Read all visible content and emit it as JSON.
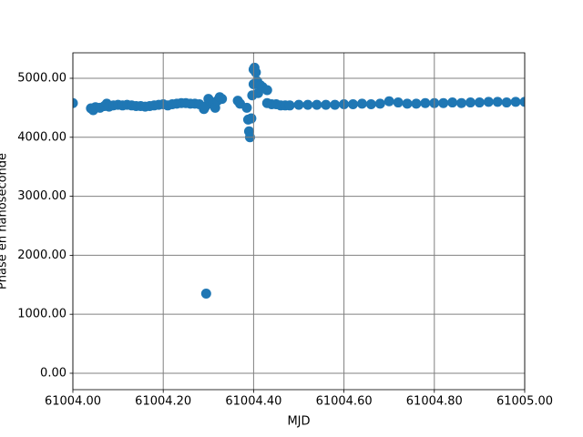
{
  "chart_data": {
    "type": "scatter",
    "xlabel": "MJD",
    "ylabel": "Phase en nanoseconde",
    "color": "#1f77b4",
    "grid": true,
    "xlim": [
      61004.0,
      61005.0
    ],
    "xticks": [
      {
        "value": 61004.0,
        "label": "61004.00"
      },
      {
        "value": 61004.2,
        "label": "61004.20"
      },
      {
        "value": 61004.4,
        "label": "61004.40"
      },
      {
        "value": 61004.6,
        "label": "61004.60"
      },
      {
        "value": 61004.8,
        "label": "61004.80"
      },
      {
        "value": 61005.0,
        "label": "61005.00"
      }
    ],
    "ylim": [
      -278,
      5432
    ],
    "yticks": [
      {
        "value": 0,
        "label": "0.00"
      },
      {
        "value": 1000,
        "label": "1000.00"
      },
      {
        "value": 2000,
        "label": "2000.00"
      },
      {
        "value": 3000,
        "label": "3000.00"
      },
      {
        "value": 4000,
        "label": "4000.00"
      },
      {
        "value": 5000,
        "label": "5000.00"
      }
    ],
    "x": [
      61004.0,
      61004.04,
      61004.045,
      61004.05,
      61004.06,
      61004.07,
      61004.075,
      61004.08,
      61004.09,
      61004.1,
      61004.11,
      61004.12,
      61004.13,
      61004.14,
      61004.15,
      61004.16,
      61004.17,
      61004.18,
      61004.19,
      61004.2,
      61004.21,
      61004.22,
      61004.23,
      61004.24,
      61004.25,
      61004.26,
      61004.27,
      61004.28,
      61004.29,
      61004.293,
      61004.295,
      61004.3,
      61004.305,
      61004.31,
      61004.315,
      61004.32,
      61004.325,
      61004.33,
      61004.365,
      61004.37,
      61004.385,
      61004.388,
      61004.39,
      61004.392,
      61004.395,
      61004.397,
      61004.4,
      61004.4,
      61004.402,
      61004.405,
      61004.408,
      61004.41,
      61004.415,
      61004.42,
      61004.43,
      61004.43,
      61004.44,
      61004.45,
      61004.46,
      61004.47,
      61004.48,
      61004.5,
      61004.52,
      61004.54,
      61004.56,
      61004.58,
      61004.6,
      61004.62,
      61004.64,
      61004.66,
      61004.68,
      61004.7,
      61004.72,
      61004.74,
      61004.76,
      61004.78,
      61004.8,
      61004.82,
      61004.84,
      61004.86,
      61004.88,
      61004.9,
      61004.92,
      61004.94,
      61004.96,
      61004.98,
      61005.0
    ],
    "y": [
      4580,
      4490,
      4460,
      4510,
      4500,
      4530,
      4570,
      4520,
      4540,
      4550,
      4540,
      4550,
      4540,
      4530,
      4530,
      4520,
      4530,
      4540,
      4550,
      4560,
      4540,
      4560,
      4570,
      4580,
      4580,
      4570,
      4570,
      4560,
      4480,
      4520,
      1350,
      4650,
      4600,
      4560,
      4500,
      4620,
      4680,
      4650,
      4620,
      4570,
      4500,
      4300,
      4100,
      4000,
      4320,
      4710,
      4900,
      5150,
      5180,
      5100,
      4950,
      4750,
      4880,
      4850,
      4800,
      4580,
      4560,
      4560,
      4540,
      4540,
      4540,
      4550,
      4550,
      4550,
      4550,
      4550,
      4560,
      4560,
      4570,
      4560,
      4570,
      4610,
      4590,
      4570,
      4570,
      4580,
      4580,
      4580,
      4590,
      4580,
      4590,
      4590,
      4600,
      4600,
      4590,
      4600,
      4600
    ]
  }
}
